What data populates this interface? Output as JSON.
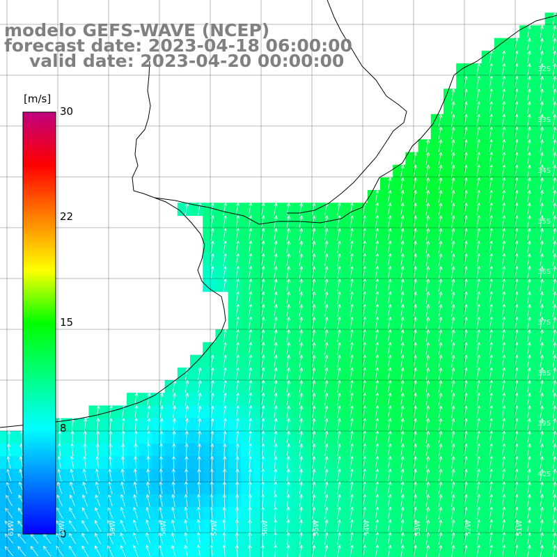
{
  "title": {
    "line1": "modelo GEFS-WAVE (NCEP)",
    "line2": "forecast date: 2023-04-18 06:00:00",
    "line3": "valid date: 2023-04-20 00:00:00"
  },
  "colorbar": {
    "unit": "[m/s]",
    "ticks": [
      "30",
      "22",
      "15",
      "8",
      "0"
    ],
    "tick_values": [
      30,
      22,
      15,
      8,
      0
    ],
    "min": 0,
    "max": 30,
    "colors": [
      "#0000ff",
      "#0080ff",
      "#00ffff",
      "#00ff80",
      "#00ff00",
      "#ffff00",
      "#ff8000",
      "#ff0000",
      "#c0007f"
    ]
  },
  "map": {
    "variable": "wind speed",
    "units": "m/s",
    "lat_labels": [
      "32S",
      "33S",
      "34S",
      "35S",
      "36S",
      "37S",
      "38S",
      "39S",
      "40S"
    ],
    "lon_labels": [
      "61W",
      "60W",
      "59W",
      "58W",
      "57W",
      "56W",
      "55W",
      "54W",
      "53W",
      "52W",
      "51W"
    ],
    "colors": {
      "land": "#ffffff",
      "grid": "#000000",
      "coastline": "#000000",
      "arrows": "#ffffff"
    }
  }
}
